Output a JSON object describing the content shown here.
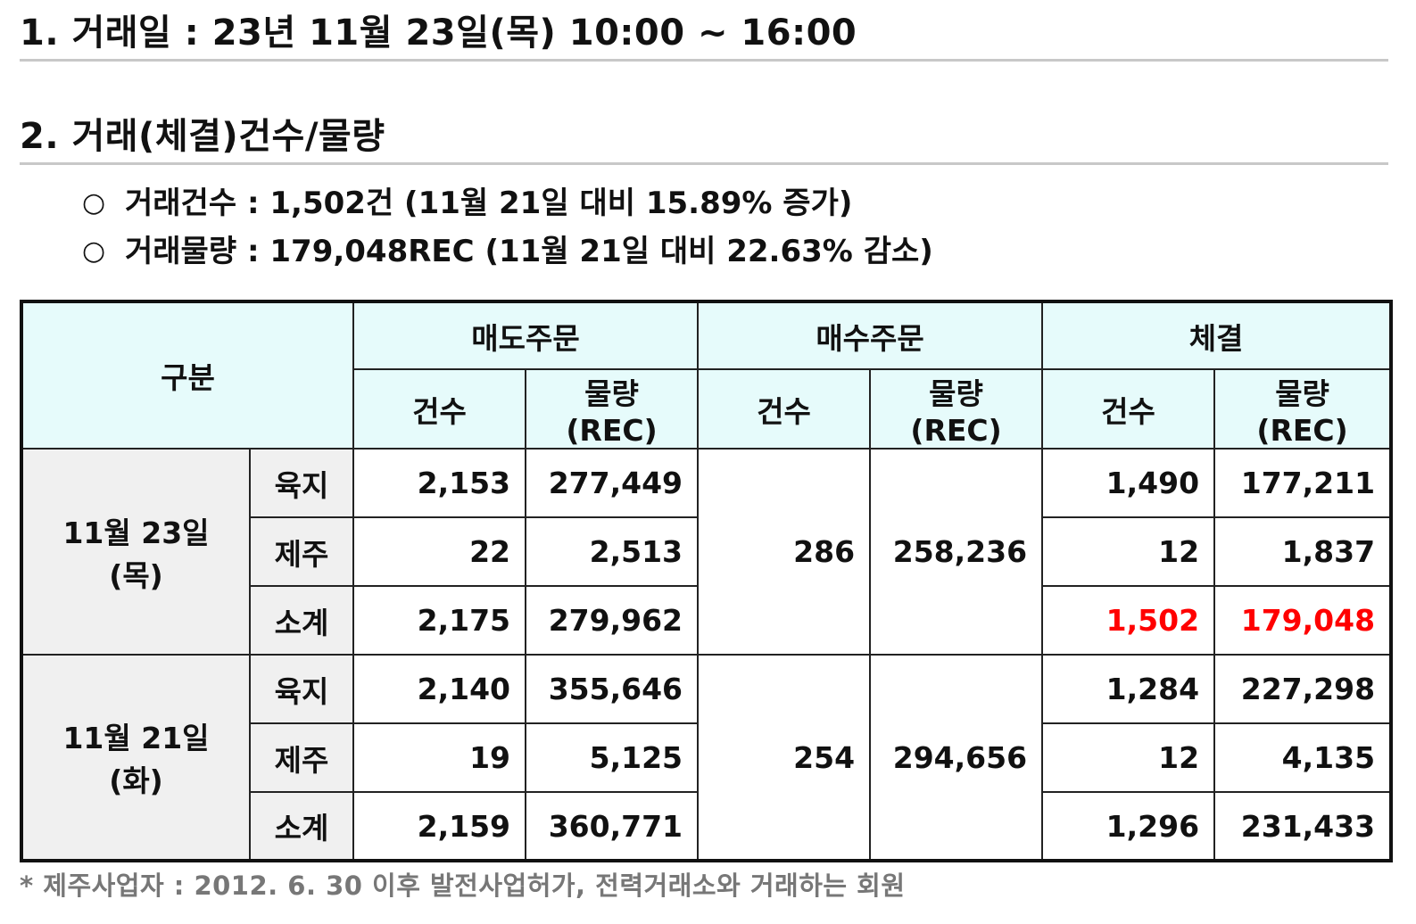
{
  "heading1": "1. 거래일 :  23년 11월 23일(목) 10:00 ~ 16:00",
  "heading2": "2. 거래(체결)건수/물량",
  "bullets": {
    "symbol": "○",
    "count": "거래건수 :  1,502건 (11월 21일 대비 15.89% 증가)",
    "volume": "거래물량 :  179,048REC (11월 21일 대비 22.63% 감소)"
  },
  "table": {
    "header": {
      "category": "구분",
      "sell": "매도주문",
      "buy": "매수주문",
      "deal": "체결",
      "count": "건수",
      "volume": "물량 (REC)"
    },
    "groups": [
      {
        "date": "11월 23일(목)",
        "buy_count": "286",
        "buy_volume": "258,236",
        "rows": [
          {
            "type": "육지",
            "sell_count": "2,153",
            "sell_volume": "277,449",
            "deal_count": "1,490",
            "deal_volume": "177,211"
          },
          {
            "type": "제주",
            "sell_count": "22",
            "sell_volume": "2,513",
            "deal_count": "12",
            "deal_volume": "1,837"
          },
          {
            "type": "소계",
            "sell_count": "2,175",
            "sell_volume": "279,962",
            "deal_count": "1,502",
            "deal_volume": "179,048"
          }
        ]
      },
      {
        "date": "11월 21일(화)",
        "buy_count": "254",
        "buy_volume": "294,656",
        "rows": [
          {
            "type": "육지",
            "sell_count": "2,140",
            "sell_volume": "355,646",
            "deal_count": "1,284",
            "deal_volume": "227,298"
          },
          {
            "type": "제주",
            "sell_count": "19",
            "sell_volume": "5,125",
            "deal_count": "12",
            "deal_volume": "4,135"
          },
          {
            "type": "소계",
            "sell_count": "2,159",
            "sell_volume": "360,771",
            "deal_count": "1,296",
            "deal_volume": "231,433"
          }
        ]
      }
    ],
    "highlight_color": "#ff0000",
    "header_bg": "#e6fbfb",
    "label_bg": "#f0f0f0"
  },
  "footnote": "* 제주사업자 : 2012. 6. 30 이후 발전사업허가, 전력거래소와 거래하는 회원"
}
